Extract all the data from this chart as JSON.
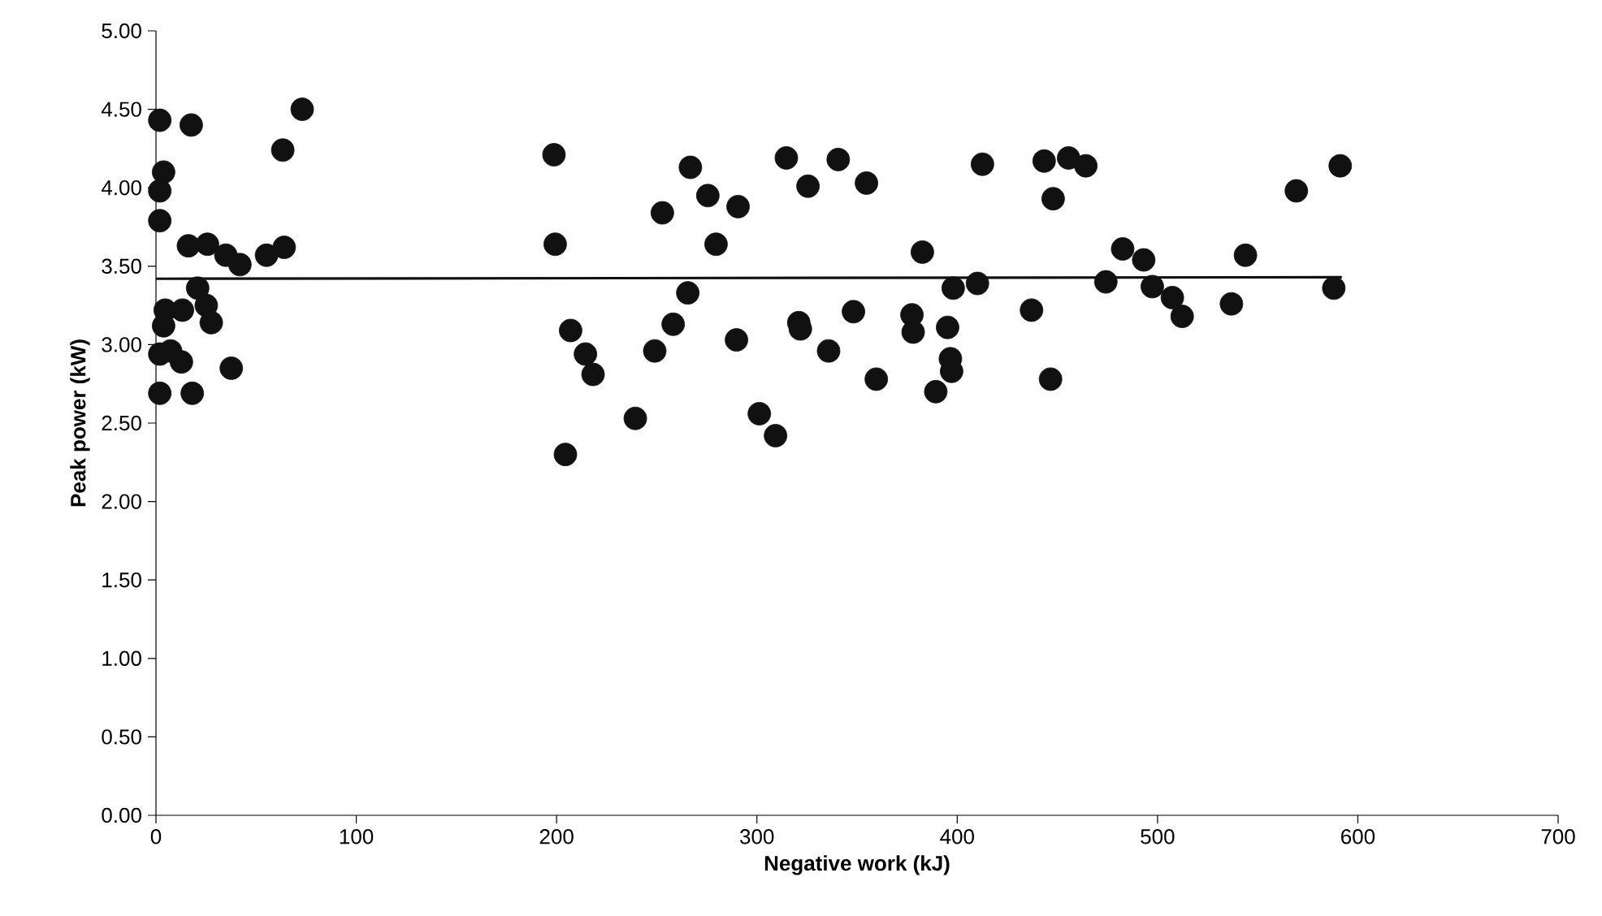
{
  "chart_data": {
    "type": "scatter",
    "xlabel": "Negative work (kJ)",
    "ylabel": "Peak power (kW)",
    "xlim": [
      0,
      700
    ],
    "xticks": [
      0,
      100,
      200,
      300,
      400,
      500,
      600,
      700
    ],
    "ylim": [
      0,
      5
    ],
    "yticks": [
      {
        "value": 0,
        "label": "0.00"
      },
      {
        "value": 0.5,
        "label": "0.50"
      },
      {
        "value": 1,
        "label": "1.00"
      },
      {
        "value": 1.5,
        "label": "1.50"
      },
      {
        "value": 2,
        "label": "2.00"
      },
      {
        "value": 2.5,
        "label": "2.50"
      },
      {
        "value": 3,
        "label": "3.00"
      },
      {
        "value": 3.5,
        "label": "3.50"
      },
      {
        "value": 4,
        "label": "4.00"
      },
      {
        "value": 4.5,
        "label": "4.50"
      },
      {
        "value": 5,
        "label": "5.00"
      }
    ],
    "grid": false,
    "marker": "circle",
    "series": [
      {
        "color": "#111111",
        "x": [
          1.9,
          17.6,
          73,
          63.3,
          3.8,
          1.9,
          1.9,
          16.2,
          25.7,
          34.9,
          41.9,
          55.2,
          64,
          20.8,
          25.1,
          13.2,
          4.6,
          3.8,
          27.6,
          1.9,
          7.3,
          12.7,
          37.6,
          1.9,
          18.1,
          198.7,
          199.3,
          207,
          214.4,
          218.2,
          204.4,
          239.3,
          249,
          252.8,
          258.2,
          266.8,
          275.5,
          290.6,
          279.6,
          265.5,
          289.8,
          314.7,
          325.5,
          340.6,
          354.7,
          320.9,
          321.7,
          335.8,
          348.2,
          301.2,
          309.3,
          359.6,
          382.6,
          377.4,
          378,
          395.2,
          396.6,
          397.2,
          389.3,
          398,
          410.1,
          412.6,
          443.4,
          455.6,
          464.2,
          447.9,
          437.1,
          446.6,
          474.2,
          482.6,
          493.1,
          497.4,
          507.4,
          512.3,
          536.9,
          543.9,
          569.3,
          591.2,
          588
        ],
        "values": [
          4.43,
          4.4,
          4.5,
          4.24,
          4.1,
          3.98,
          3.79,
          3.63,
          3.64,
          3.57,
          3.51,
          3.57,
          3.62,
          3.36,
          3.25,
          3.22,
          3.22,
          3.12,
          3.14,
          2.94,
          2.96,
          2.89,
          2.85,
          2.69,
          2.69,
          4.21,
          3.64,
          3.09,
          2.94,
          2.81,
          2.3,
          2.53,
          2.96,
          3.84,
          3.13,
          4.13,
          3.95,
          3.88,
          3.64,
          3.33,
          3.03,
          4.19,
          4.01,
          4.18,
          4.03,
          3.14,
          3.1,
          2.96,
          3.21,
          2.56,
          2.42,
          2.78,
          3.59,
          3.19,
          3.08,
          3.11,
          2.91,
          2.83,
          2.7,
          3.36,
          3.39,
          4.15,
          4.17,
          4.19,
          4.14,
          3.93,
          3.22,
          2.78,
          3.4,
          3.61,
          3.54,
          3.37,
          3.3,
          3.18,
          3.26,
          3.57,
          3.98,
          4.14,
          3.36
        ]
      },
      {
        "type": "line",
        "color": "#111111",
        "marker": "none",
        "x": [
          0,
          592
        ],
        "values": [
          3.42,
          3.43
        ]
      }
    ]
  }
}
